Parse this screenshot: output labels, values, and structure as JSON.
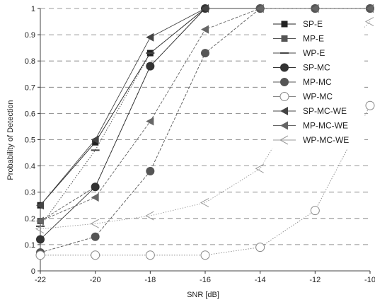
{
  "chart_data": {
    "type": "line",
    "title": "",
    "xlabel": "SNR [dB]",
    "ylabel": "Probability of Detection",
    "xlim": [
      -22,
      -10
    ],
    "ylim": [
      0,
      1
    ],
    "x_ticks": [
      "-22",
      "-20",
      "-18",
      "-16",
      "-14",
      "-12",
      "-10"
    ],
    "y_ticks": [
      "0",
      "0.1",
      "0.2",
      "0.3",
      "0.4",
      "0.5",
      "0.6",
      "0.7",
      "0.8",
      "0.9",
      "1"
    ],
    "grid": "horizontal-dashed",
    "legend_position": "right",
    "x": [
      -22,
      -20,
      -18,
      -16,
      -14,
      -12,
      -10
    ],
    "series": [
      {
        "name": "SP-E",
        "marker": "square",
        "color": "#222222",
        "values": [
          0.25,
          0.49,
          0.83,
          1.0,
          1.0,
          1.0,
          1.0
        ]
      },
      {
        "name": "MP-E",
        "marker": "square",
        "color": "#555555",
        "values": [
          0.19,
          0.32,
          0.78,
          1.0,
          1.0,
          1.0,
          1.0
        ]
      },
      {
        "name": "WP-E",
        "marker": "dash",
        "color": "#444444",
        "values": [
          0.17,
          0.46,
          0.83,
          1.0,
          1.0,
          1.0,
          1.0
        ]
      },
      {
        "name": "SP-MC",
        "marker": "circle",
        "color": "#333333",
        "values": [
          0.12,
          0.32,
          0.78,
          1.0,
          1.0,
          1.0,
          1.0
        ]
      },
      {
        "name": "MP-MC",
        "marker": "circle",
        "color": "#555555",
        "values": [
          0.07,
          0.13,
          0.38,
          0.83,
          1.0,
          1.0,
          1.0
        ]
      },
      {
        "name": "WP-MC",
        "marker": "open-circle",
        "color": "#888888",
        "values": [
          0.06,
          0.06,
          0.06,
          0.06,
          0.09,
          0.23,
          0.63
        ]
      },
      {
        "name": "SP-MC-WE",
        "marker": "triangle-left",
        "color": "#444444",
        "values": [
          0.25,
          0.5,
          0.89,
          1.0,
          1.0,
          1.0,
          1.0
        ]
      },
      {
        "name": "MP-MC-WE",
        "marker": "triangle-left",
        "color": "#666666",
        "values": [
          0.19,
          0.28,
          0.57,
          0.92,
          1.0,
          1.0,
          1.0
        ]
      },
      {
        "name": "WP-MC-WE",
        "marker": "open-triangle-left",
        "color": "#999999",
        "values": [
          0.16,
          0.18,
          0.21,
          0.26,
          0.39,
          0.74,
          0.95
        ]
      }
    ]
  }
}
